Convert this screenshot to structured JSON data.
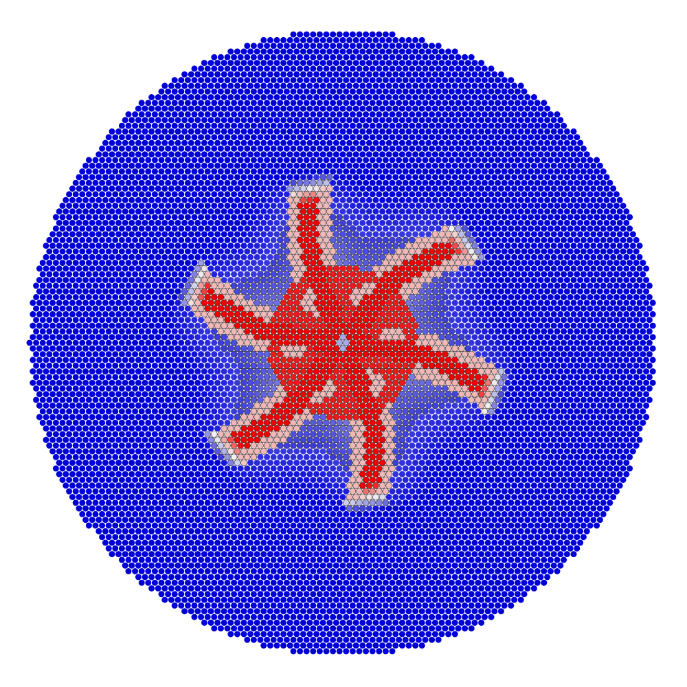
{
  "colors": {
    "background": "#ffffff",
    "cold": "#0000d6",
    "mid": "#f2f2f2",
    "hot": "#f00000",
    "outline": "#2a2a2a"
  },
  "pattern": {
    "spoke_count": 6,
    "central_hub": true,
    "inner_ring": true,
    "inner_holes": 6
  }
}
